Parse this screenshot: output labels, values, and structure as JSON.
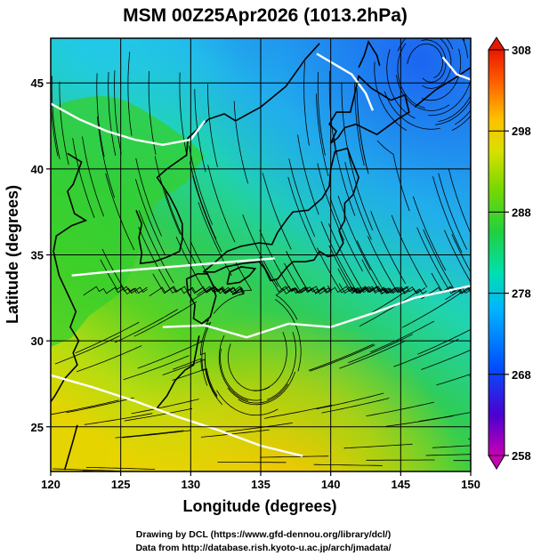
{
  "title": "MSM 00Z25Apr2026 (1013.2hPa)",
  "map": {
    "lon_range": [
      120,
      150
    ],
    "lat_range": [
      22.4,
      47.6
    ],
    "x_ticks": [
      "120",
      "125",
      "130",
      "135",
      "140",
      "145",
      "150"
    ],
    "y_ticks": [
      "25",
      "30",
      "35",
      "40",
      "45"
    ],
    "x_label": "Longitude (degrees)",
    "y_label": "Latitude  (degrees)",
    "grid": true,
    "field": "temperature (shaded) with wind streamlines and white isotherm contours",
    "colors": {
      "ocean_cold": "#1e6cf0",
      "ocean_mid": "#22d0c0",
      "land_warm": "#2ecc28",
      "south_warm": "#d8e000",
      "contour": "#ffffff",
      "coast": "#000000"
    }
  },
  "colorbar": {
    "ticks": [
      "308",
      "298",
      "288",
      "278",
      "268",
      "258"
    ],
    "range": [
      258,
      308
    ],
    "stops": [
      "#c800b4",
      "#4b00d0",
      "#0050ff",
      "#00b4ff",
      "#00e0b0",
      "#20d040",
      "#7ad800",
      "#d8e000",
      "#ffc000",
      "#ff6000",
      "#e81800"
    ]
  },
  "credits": {
    "line1": "Drawing by DCL (https://www.gfd-dennou.org/library/dcl/)",
    "line2": "Data from http://database.rish.kyoto-u.ac.jp/arch/jmadata/"
  }
}
